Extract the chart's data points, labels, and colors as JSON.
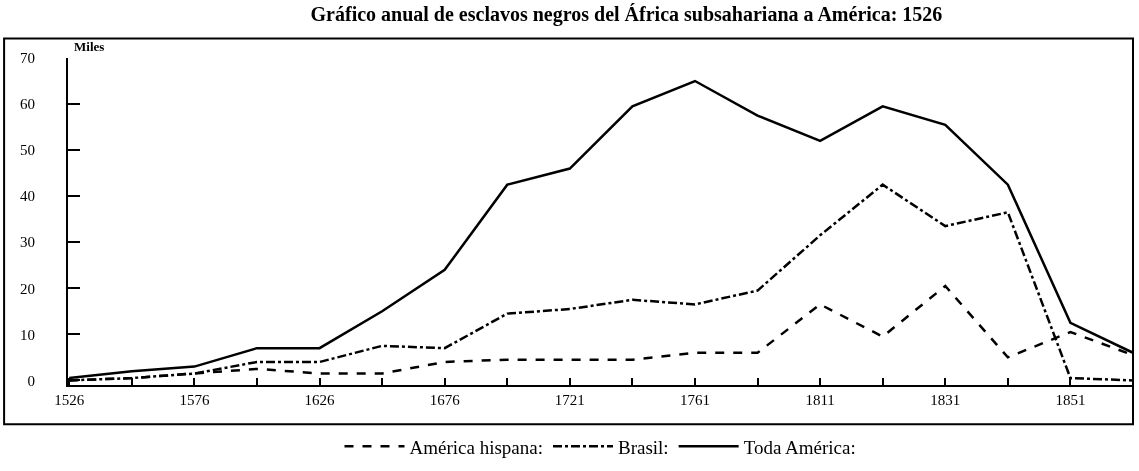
{
  "chart_data": {
    "type": "line",
    "title": "Gráfico anual de esclavos negros del África subsahariana a América: 1526",
    "ylabel": "Miles",
    "categories": [
      "1526",
      null,
      "1576",
      null,
      "1626",
      null,
      "1676",
      null,
      "1721",
      null,
      "1761",
      null,
      "1811",
      null,
      "1831",
      null,
      "1851",
      null
    ],
    "series": [
      {
        "name": "América hispana:",
        "color": "#000000",
        "line_style": "dashed",
        "values": [
          0,
          0.5,
          1.5,
          2.5,
          1.5,
          1.5,
          4,
          4.5,
          4.5,
          4.5,
          6,
          6,
          16.5,
          9.5,
          20.5,
          5,
          10.5,
          5.5
        ]
      },
      {
        "name": "Brasil:",
        "color": "#000000",
        "line_style": "dashdot",
        "values": [
          0,
          0.5,
          1.5,
          4,
          4,
          7.5,
          7,
          14.5,
          15.5,
          17.5,
          16.5,
          19.5,
          31.5,
          42.5,
          33.5,
          36.5,
          0.5,
          0
        ]
      },
      {
        "name": "Toda América:",
        "color": "#000000",
        "line_style": "solid",
        "values": [
          0.5,
          2,
          3,
          7,
          7,
          15,
          24,
          42.5,
          46,
          59.5,
          65,
          57.5,
          52,
          59.5,
          55.5,
          42.5,
          12.5,
          6
        ]
      }
    ],
    "ylim": [
      -1,
      70
    ],
    "yticks": [
      0,
      10,
      20,
      30,
      40,
      50,
      60,
      70
    ],
    "grid": false,
    "legend": "bottom",
    "marker": "none"
  }
}
